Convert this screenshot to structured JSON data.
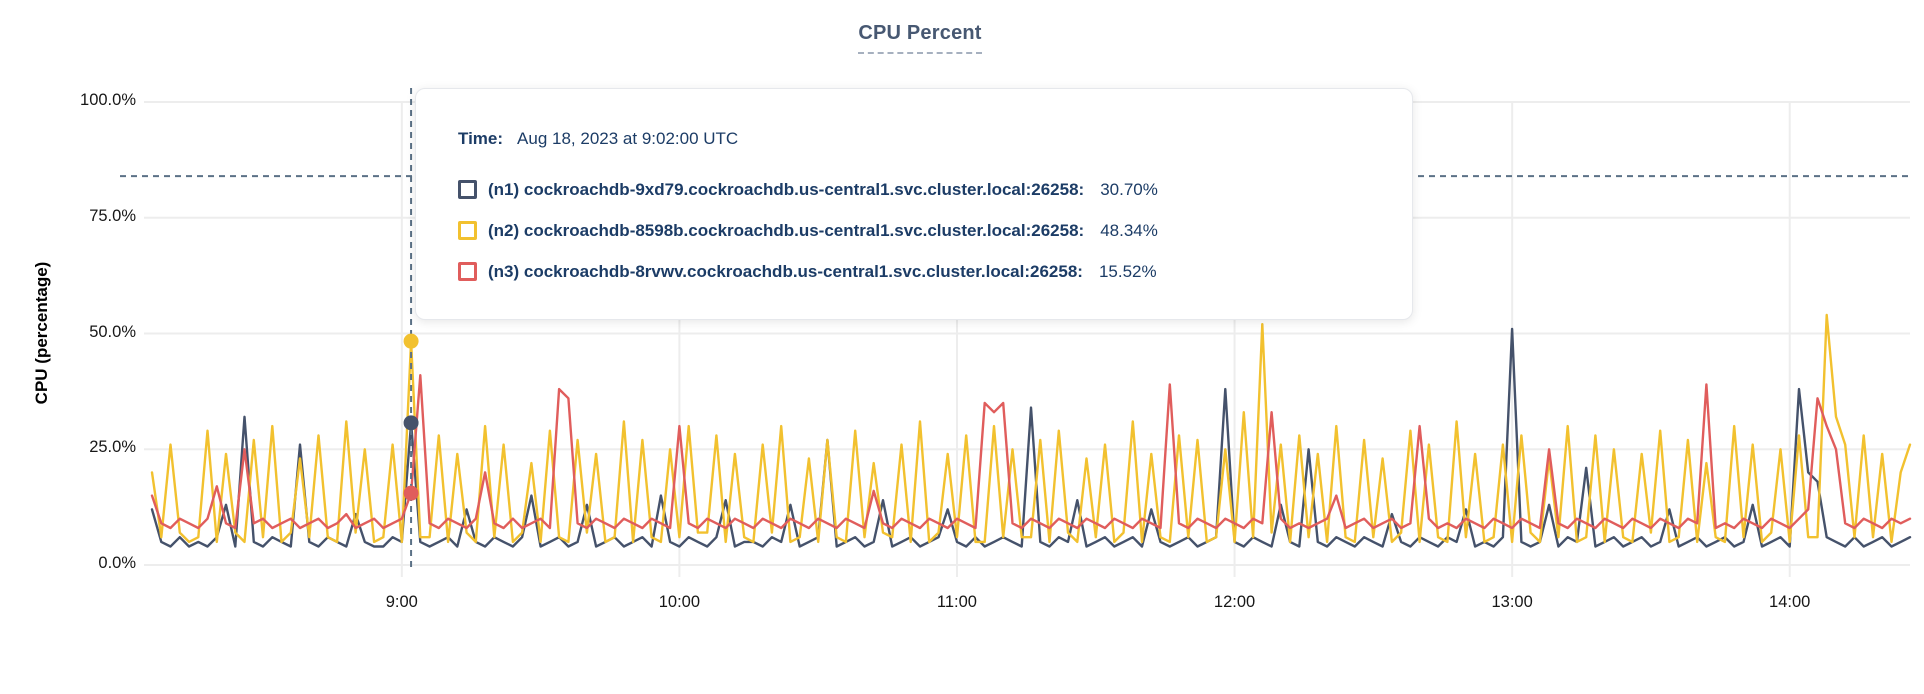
{
  "colors": {
    "grid": "#ededed",
    "cursor": "#5b7186",
    "title": "#475872",
    "tooltip_text": "#1c3c66",
    "axis_text": "#171717",
    "n1": "#45526b",
    "n2": "#f2c12f",
    "n3": "#e05d5c"
  },
  "tooltip": {
    "time_label": "Time:",
    "time_value": "Aug 18, 2023 at 9:02:00 UTC",
    "rows": [
      {
        "id": "n1",
        "color": "#45526b",
        "label": "(n1) cockroachdb-9xd79.cockroachdb.us-central1.svc.cluster.local:26258:",
        "value": "30.70%"
      },
      {
        "id": "n2",
        "color": "#f2c12f",
        "label": "(n2) cockroachdb-8598b.cockroachdb.us-central1.svc.cluster.local:26258:",
        "value": "48.34%"
      },
      {
        "id": "n3",
        "color": "#e05d5c",
        "label": "(n3) cockroachdb-8rvwv.cockroachdb.us-central1.svc.cluster.local:26258:",
        "value": "15.52%"
      }
    ]
  },
  "chart_data": {
    "type": "line",
    "title": "CPU Percent",
    "xlabel": "",
    "ylabel": "CPU (percentage)",
    "ylim": [
      0,
      100
    ],
    "grid": true,
    "legend_position": "tooltip-overlay",
    "y_ticks": [
      "0.0%",
      "25.0%",
      "50.0%",
      "75.0%",
      "100.0%"
    ],
    "y_tick_values": [
      0,
      25,
      50,
      75,
      100
    ],
    "x_ticks": [
      "9:00",
      "10:00",
      "11:00",
      "12:00",
      "13:00",
      "14:00"
    ],
    "x_tick_minutes": [
      54,
      114,
      174,
      234,
      294,
      354
    ],
    "x_domain_minutes": [
      0,
      380
    ],
    "step_minutes": 2,
    "cursor": {
      "minute": 56,
      "time_label": "9:02",
      "y_percent": 84
    },
    "series": [
      {
        "id": "n1",
        "name": "(n1) cockroachdb-9xd79.cockroachdb.us-central1.svc.cluster.local:26258",
        "color": "#45526b",
        "cursor_value": 30.7,
        "values": [
          12,
          5,
          4,
          6,
          4,
          5,
          4,
          6,
          13,
          4,
          32,
          5,
          4,
          6,
          5,
          4,
          26,
          5,
          4,
          6,
          5,
          4,
          11,
          5,
          4,
          4,
          6,
          5,
          30.7,
          5,
          4,
          5,
          6,
          4,
          12,
          5,
          4,
          6,
          5,
          4,
          6,
          15,
          4,
          5,
          6,
          4,
          5,
          13,
          4,
          5,
          6,
          4,
          5,
          6,
          4,
          15,
          5,
          4,
          6,
          5,
          4,
          6,
          14,
          4,
          5,
          5,
          4,
          6,
          5,
          13,
          4,
          5,
          6,
          27,
          4,
          5,
          6,
          4,
          5,
          14,
          4,
          5,
          6,
          4,
          5,
          6,
          12,
          5,
          4,
          6,
          4,
          5,
          6,
          5,
          4,
          34,
          5,
          4,
          6,
          5,
          14,
          4,
          5,
          6,
          4,
          5,
          6,
          4,
          12,
          5,
          4,
          5,
          6,
          4,
          5,
          6,
          38,
          5,
          4,
          6,
          5,
          4,
          13,
          5,
          4,
          25,
          5,
          4,
          6,
          5,
          4,
          6,
          5,
          4,
          11,
          5,
          4,
          6,
          5,
          4,
          6,
          5,
          12,
          4,
          5,
          4,
          6,
          51,
          5,
          4,
          5,
          13,
          4,
          6,
          5,
          21,
          4,
          5,
          6,
          4,
          5,
          6,
          4,
          5,
          12,
          4,
          5,
          6,
          4,
          5,
          6,
          4,
          5,
          13,
          4,
          5,
          6,
          4,
          38,
          20,
          18,
          6,
          5,
          4,
          6,
          4,
          5,
          6,
          4,
          5,
          6
        ]
      },
      {
        "id": "n2",
        "name": "(n2) cockroachdb-8598b.cockroachdb.us-central1.svc.cluster.local:26258",
        "color": "#f2c12f",
        "cursor_value": 48.34,
        "values": [
          20,
          6,
          26,
          7,
          5,
          6,
          29,
          5,
          24,
          7,
          5,
          27,
          6,
          30,
          5,
          7,
          23,
          6,
          28,
          6,
          5,
          31,
          7,
          25,
          5,
          6,
          26,
          5,
          48.34,
          6,
          6,
          28,
          5,
          24,
          7,
          5,
          30,
          6,
          26,
          5,
          7,
          22,
          5,
          29,
          6,
          5,
          27,
          7,
          24,
          5,
          6,
          31,
          5,
          27,
          6,
          5,
          25,
          6,
          30,
          7,
          7,
          28,
          5,
          24,
          6,
          5,
          26,
          7,
          30,
          5,
          6,
          23,
          5,
          27,
          6,
          5,
          29,
          6,
          22,
          7,
          6,
          26,
          5,
          31,
          5,
          7,
          24,
          6,
          28,
          5,
          5,
          30,
          6,
          25,
          6,
          6,
          27,
          5,
          29,
          7,
          5,
          23,
          6,
          26,
          5,
          7,
          31,
          5,
          24,
          6,
          5,
          28,
          6,
          27,
          5,
          6,
          25,
          5,
          33,
          6,
          52,
          7,
          26,
          5,
          28,
          6,
          24,
          5,
          30,
          6,
          5,
          27,
          6,
          23,
          5,
          7,
          29,
          5,
          26,
          6,
          5,
          31,
          6,
          24,
          5,
          6,
          26,
          5,
          28,
          7,
          5,
          23,
          6,
          30,
          5,
          6,
          28,
          5,
          25,
          6,
          5,
          24,
          7,
          29,
          5,
          6,
          27,
          5,
          22,
          6,
          5,
          30,
          6,
          26,
          5,
          7,
          25,
          5,
          28,
          6,
          6,
          54,
          32,
          26,
          6,
          28,
          6,
          24,
          5,
          20,
          26
        ]
      },
      {
        "id": "n3",
        "name": "(n3) cockroachdb-8rvwv.cockroachdb.us-central1.svc.cluster.local:26258",
        "color": "#e05d5c",
        "cursor_value": 15.52,
        "values": [
          15,
          9,
          8,
          10,
          9,
          8,
          10,
          17,
          9,
          8,
          25,
          9,
          10,
          8,
          9,
          10,
          8,
          9,
          10,
          8,
          9,
          11,
          8,
          9,
          10,
          8,
          9,
          10,
          15.52,
          41,
          9,
          8,
          10,
          9,
          8,
          10,
          20,
          9,
          8,
          10,
          8,
          9,
          10,
          8,
          38,
          36,
          9,
          8,
          10,
          9,
          8,
          10,
          9,
          8,
          10,
          9,
          8,
          30,
          9,
          8,
          10,
          9,
          8,
          10,
          9,
          8,
          10,
          9,
          8,
          10,
          9,
          8,
          10,
          9,
          8,
          10,
          9,
          8,
          16,
          9,
          8,
          10,
          9,
          8,
          10,
          9,
          8,
          10,
          9,
          8,
          35,
          33,
          35,
          9,
          8,
          10,
          9,
          8,
          10,
          9,
          8,
          10,
          9,
          8,
          10,
          9,
          8,
          10,
          9,
          8,
          39,
          9,
          8,
          10,
          9,
          8,
          10,
          9,
          8,
          10,
          9,
          33,
          10,
          8,
          9,
          8,
          9,
          10,
          15,
          8,
          9,
          10,
          8,
          9,
          10,
          8,
          9,
          30,
          10,
          8,
          9,
          8,
          10,
          9,
          8,
          10,
          9,
          8,
          10,
          9,
          8,
          25,
          9,
          8,
          10,
          9,
          8,
          10,
          9,
          8,
          10,
          9,
          8,
          10,
          9,
          8,
          10,
          9,
          39,
          8,
          9,
          8,
          10,
          9,
          8,
          10,
          9,
          8,
          10,
          12,
          36,
          30,
          25,
          9,
          8,
          10,
          9,
          8,
          10,
          9,
          10
        ]
      }
    ]
  }
}
